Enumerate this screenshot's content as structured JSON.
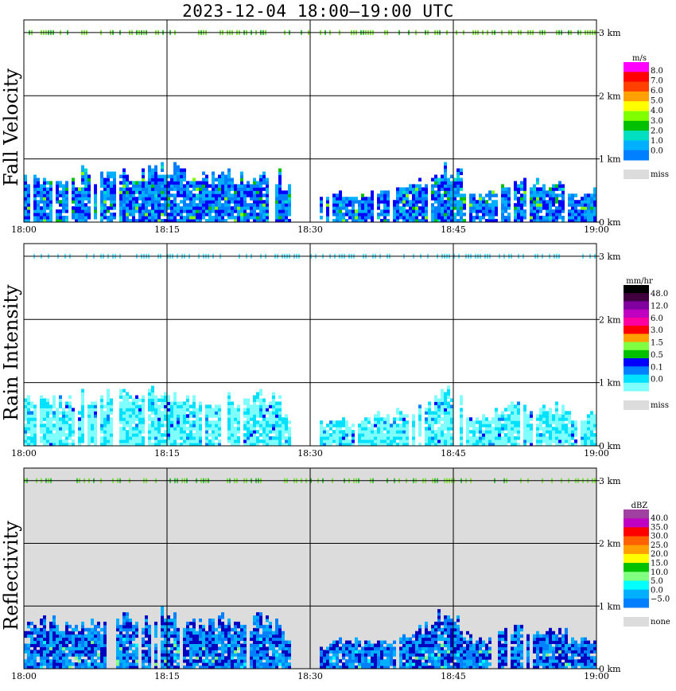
{
  "title": "2023-12-04   18:00–19:00 UTC",
  "colors": {
    "miss": "#dcdcdc",
    "grid": "#000000",
    "fv_scale": [
      "#0000ff",
      "#0080ff",
      "#00b0ff",
      "#00e0c0",
      "#00c000",
      "#80ff00",
      "#ffff00",
      "#ffa000",
      "#ff4000",
      "#ff0000",
      "#ff00ff"
    ],
    "ri_scale": [
      "#ffffff",
      "#80ffff",
      "#00e0ff",
      "#0080ff",
      "#0000ff",
      "#00c000",
      "#80ff40",
      "#ffff00",
      "#ffa000",
      "#ff0000",
      "#ff00a0",
      "#c000c0",
      "#8000a0",
      "#400040",
      "#000000"
    ],
    "z_scale": [
      "#0000c0",
      "#0080ff",
      "#00b0ff",
      "#00ffff",
      "#80ff80",
      "#00c000",
      "#ffff00",
      "#ffa000",
      "#ff6000",
      "#ff0000",
      "#c000c0",
      "#a040a0"
    ]
  },
  "chart_data": [
    {
      "type": "heatmap",
      "name": "fall-velocity",
      "ylabel": "Fall Velocity",
      "x_ticks": [
        "18:00",
        "18:15",
        "18:30",
        "18:45",
        "19:00"
      ],
      "xlim_minutes": [
        0,
        60
      ],
      "y_ticks": [
        "3 km",
        "2 km",
        "1 km",
        "0 km"
      ],
      "ylim_km": [
        0,
        3.2
      ],
      "colorbar": {
        "unit": "m/s",
        "labels": [
          "8.0",
          "7.0",
          "6.0",
          "5.0",
          "4.0",
          "3.0",
          "2.0",
          "1.0",
          "0.0",
          "miss"
        ]
      },
      "background": "white",
      "data_top_km_by_min": [
        0.8,
        0.8,
        0.82,
        0.85,
        0.78,
        0.7,
        0.9,
        0.85,
        0.9,
        0.95,
        0.9,
        0.88,
        0.86,
        0.95,
        1.0,
        0.95,
        0.9,
        0.88,
        0.85,
        0.8,
        0.87,
        0.84,
        0.82,
        0.8,
        0.88,
        0.85,
        0.82,
        0.6,
        0,
        0,
        0,
        0.45,
        0.5,
        0.55,
        0.5,
        0.48,
        0.5,
        0.55,
        0.5,
        0.6,
        0.65,
        0.7,
        0.75,
        0.95,
        1.0,
        0.85,
        0.6,
        0.5,
        0.55,
        0.6,
        0.7,
        0.75,
        0.72,
        0.7,
        0.68,
        0.7,
        0.65,
        0.55,
        0.5,
        0.6
      ]
    },
    {
      "type": "heatmap",
      "name": "rain-intensity",
      "ylabel": "Rain Intensity",
      "x_ticks": [
        "18:00",
        "18:15",
        "18:30",
        "18:45",
        "19:00"
      ],
      "xlim_minutes": [
        0,
        60
      ],
      "y_ticks": [
        "3 km",
        "2 km",
        "1 km",
        "0 km"
      ],
      "ylim_km": [
        0,
        3.2
      ],
      "colorbar": {
        "unit": "mm/hr",
        "labels": [
          "48.0",
          "12.0",
          "6.0",
          "3.0",
          "1.5",
          "0.5",
          "0.1",
          "0.0",
          "miss"
        ]
      },
      "background": "white",
      "data_top_km_by_min": [
        0.8,
        0.8,
        0.82,
        0.85,
        0.78,
        0.7,
        0.9,
        0.85,
        0.9,
        0.95,
        0.9,
        0.88,
        0.86,
        0.95,
        1.0,
        0.95,
        0.9,
        0.88,
        0.85,
        0.8,
        0.87,
        0.84,
        0.82,
        0.8,
        0.88,
        0.85,
        0.82,
        0.6,
        0,
        0,
        0,
        0.45,
        0.5,
        0.55,
        0.5,
        0.48,
        0.5,
        0.55,
        0.5,
        0.6,
        0.65,
        0.7,
        0.75,
        0.95,
        1.0,
        0.85,
        0.6,
        0.5,
        0.55,
        0.6,
        0.7,
        0.75,
        0.72,
        0.7,
        0.68,
        0.7,
        0.65,
        0.55,
        0.5,
        0.6
      ]
    },
    {
      "type": "heatmap",
      "name": "reflectivity",
      "ylabel": "Reflectivity",
      "x_ticks": [
        "18:00",
        "18:15",
        "18:30",
        "18:45",
        "19:00"
      ],
      "xlim_minutes": [
        0,
        60
      ],
      "y_ticks": [
        "3 km",
        "2 km",
        "1 km",
        "0 km"
      ],
      "ylim_km": [
        0,
        3.2
      ],
      "colorbar": {
        "unit": "dBZ",
        "labels": [
          "40.0",
          "35.0",
          "30.0",
          "25.0",
          "20.0",
          "15.0",
          "10.0",
          "5.0",
          "0.0",
          "−5.0",
          "none"
        ]
      },
      "background": "gray",
      "data_top_km_by_min": [
        0.8,
        0.8,
        0.82,
        0.85,
        0.78,
        0.7,
        0.9,
        0.85,
        0.9,
        0.95,
        0.9,
        0.88,
        0.86,
        0.95,
        1.0,
        0.95,
        0.9,
        0.88,
        0.85,
        0.8,
        0.87,
        0.84,
        0.82,
        0.8,
        0.88,
        0.85,
        0.82,
        0.6,
        0,
        0,
        0,
        0.45,
        0.5,
        0.55,
        0.5,
        0.48,
        0.5,
        0.55,
        0.5,
        0.6,
        0.65,
        0.7,
        0.75,
        0.95,
        1.0,
        0.85,
        0.6,
        0.5,
        0.55,
        0.6,
        0.7,
        0.75,
        0.72,
        0.7,
        0.68,
        0.7,
        0.65,
        0.55,
        0.5,
        0.6
      ]
    }
  ]
}
